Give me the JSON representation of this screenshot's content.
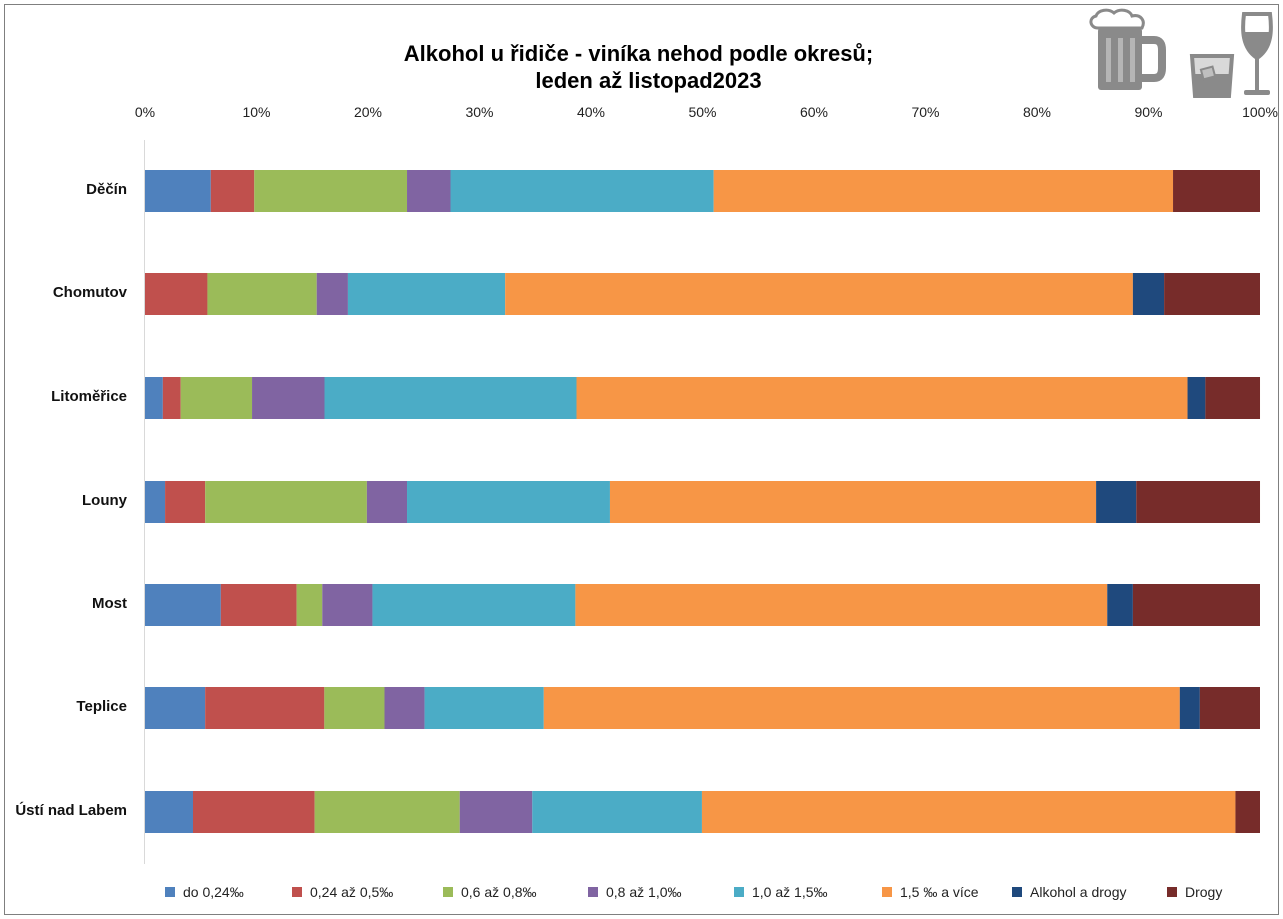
{
  "chart_data": {
    "type": "bar",
    "orientation": "horizontal",
    "stacked": "percent",
    "title_lines": [
      "Alkohol u řidiče - viníka nehod podle okresů;",
      "leden až listopad2023"
    ],
    "xlabel": "",
    "ylabel": "",
    "x_ticks": [
      "0%",
      "10%",
      "20%",
      "30%",
      "40%",
      "50%",
      "60%",
      "70%",
      "80%",
      "90%",
      "100%"
    ],
    "xlim": [
      0,
      100
    ],
    "grid": false,
    "legend_position": "bottom",
    "categories": [
      "Děčín",
      "Chomutov",
      "Litoměřice",
      "Louny",
      "Most",
      "Teplice",
      "Ústí nad Labem"
    ],
    "series": [
      {
        "name": "do 0,24‰",
        "color": "#4f81bd",
        "values": [
          5.9,
          0,
          1.6,
          1.8,
          6.8,
          5.4,
          4.3
        ]
      },
      {
        "name": "0,24 až 0,5‰",
        "color": "#c0504d",
        "values": [
          3.9,
          5.6,
          1.6,
          3.6,
          6.8,
          10.7,
          10.9
        ]
      },
      {
        "name": "0,6 až 0,8‰",
        "color": "#9bbb59",
        "values": [
          13.7,
          9.8,
          6.4,
          14.5,
          2.3,
          5.4,
          13.0
        ]
      },
      {
        "name": "0,8 až 1,0‰",
        "color": "#8064a2",
        "values": [
          3.9,
          2.8,
          6.5,
          3.6,
          4.5,
          3.6,
          6.5
        ]
      },
      {
        "name": "1,0 až 1,5‰",
        "color": "#4bacc6",
        "values": [
          23.6,
          14.1,
          22.6,
          18.2,
          18.2,
          10.7,
          15.2
        ]
      },
      {
        "name": "1,5 ‰ a více",
        "color": "#f79646",
        "values": [
          41.2,
          56.3,
          54.8,
          43.6,
          47.7,
          57.1,
          47.8
        ]
      },
      {
        "name": "Alkohol a drogy",
        "color": "#1f497d",
        "values": [
          0,
          2.8,
          1.6,
          3.6,
          2.3,
          1.8,
          0
        ]
      },
      {
        "name": "Drogy",
        "color": "#772c2a",
        "values": [
          7.8,
          8.6,
          4.9,
          11.1,
          11.4,
          5.4,
          2.2
        ]
      }
    ]
  },
  "icons": [
    "beer-mug-icon",
    "whisky-glass-icon",
    "wine-glass-icon"
  ]
}
